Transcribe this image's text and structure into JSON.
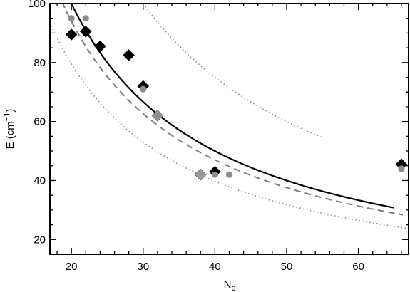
{
  "chart_data": {
    "type": "scatter",
    "xlabel": "N",
    "xlabel_sub": "c",
    "ylabel": "E (cm",
    "ylabel_sup": "−1",
    "ylabel_close": ")",
    "xlim": [
      17,
      67
    ],
    "ylim": [
      15,
      100
    ],
    "xticks": [
      20,
      30,
      40,
      50,
      60
    ],
    "yticks": [
      20,
      40,
      60,
      80,
      100
    ],
    "grid": false,
    "series": [
      {
        "marker": "diamond",
        "color": "#000000",
        "points": [
          {
            "x": 20,
            "y": 89.5
          },
          {
            "x": 22,
            "y": 90.5
          },
          {
            "x": 24,
            "y": 85.5
          },
          {
            "x": 28,
            "y": 82.5
          },
          {
            "x": 30,
            "y": 72
          },
          {
            "x": 40,
            "y": 43
          },
          {
            "x": 66,
            "y": 45.5
          }
        ]
      },
      {
        "marker": "diamond",
        "color": "#999999",
        "points": [
          {
            "x": 32,
            "y": 62
          },
          {
            "x": 38,
            "y": 42
          }
        ]
      },
      {
        "marker": "circle",
        "color": "#8c8c8c",
        "points": [
          {
            "x": 20,
            "y": 95
          },
          {
            "x": 22,
            "y": 95
          },
          {
            "x": 30,
            "y": 71
          },
          {
            "x": 32,
            "y": 62
          },
          {
            "x": 40,
            "y": 42
          },
          {
            "x": 42,
            "y": 42
          },
          {
            "x": 66,
            "y": 44
          }
        ]
      }
    ],
    "curves": [
      {
        "style": "solid",
        "color": "#000000",
        "a": 2000,
        "n": 1
      },
      {
        "style": "dashed",
        "color": "#7f7f7f",
        "a": 1880,
        "n": 1
      },
      {
        "style": "dotted",
        "color": "#8c8c8c",
        "a": 1590,
        "n": 1
      },
      {
        "style": "dotted",
        "color": "#8c8c8c",
        "a": 3000,
        "n": 1
      }
    ]
  }
}
